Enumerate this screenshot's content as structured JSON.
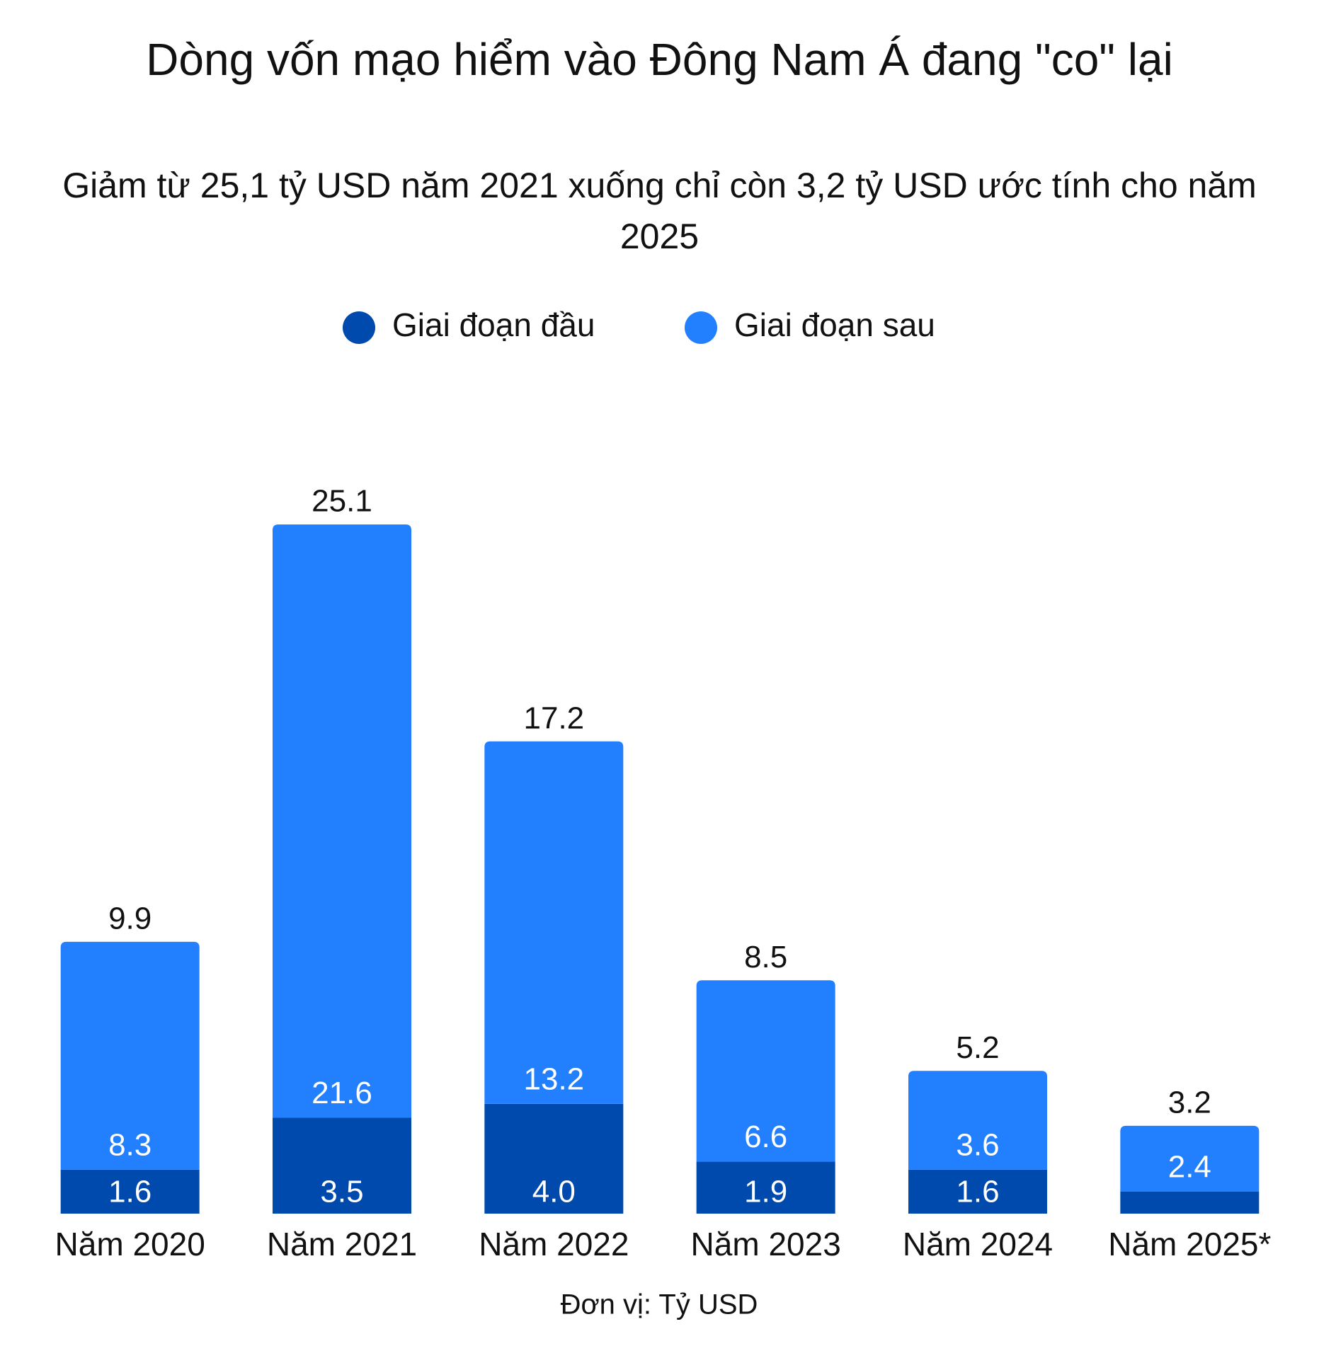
{
  "chart_data": {
    "type": "stacked_bar",
    "title": "Dòng vốn mạo hiểm vào Đông Nam Á đang \"co\" lại",
    "subtitle": "Giảm từ 25,1 tỷ USD năm 2021 xuống chỉ còn 3,2 tỷ USD ước tính cho năm 2025",
    "categories": [
      "Năm 2020",
      "Năm 2021",
      "Năm 2022",
      "Năm 2023",
      "Năm 2024",
      "Năm 2025*"
    ],
    "series": [
      {
        "name": "Giai đoạn đầu",
        "color": "#0049ad",
        "values": [
          1.6,
          3.5,
          4.0,
          1.9,
          1.6,
          0.8
        ],
        "value_labels": [
          "1.6",
          "3.5",
          "4.0",
          "1.9",
          "1.6",
          null
        ]
      },
      {
        "name": "Giai đoạn sau",
        "color": "#2280ff",
        "values": [
          8.3,
          21.6,
          13.2,
          6.6,
          3.6,
          2.4
        ]
      }
    ],
    "totals": [
      9.9,
      25.1,
      17.2,
      8.5,
      5.2,
      3.2
    ],
    "note": "Đơn vị: Tỷ USD",
    "legend": "top"
  }
}
